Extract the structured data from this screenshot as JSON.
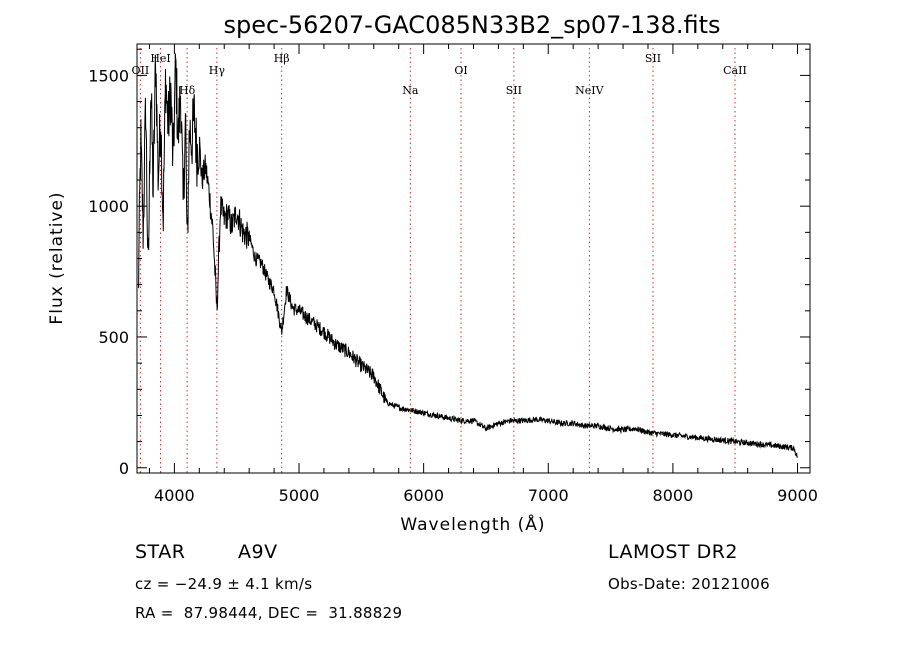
{
  "chart_data": {
    "type": "line",
    "title": "spec-56207-GAC085N33B2_sp07-138.fits",
    "xlabel": "Wavelength (Å)",
    "ylabel": "Flux (relative)",
    "xlim": [
      3700,
      9100
    ],
    "ylim": [
      -20,
      1620
    ],
    "x_ticks": [
      4000,
      5000,
      6000,
      7000,
      8000,
      9000
    ],
    "y_ticks": [
      0,
      500,
      1000,
      1500
    ],
    "grid": false,
    "line_markers": [
      {
        "name": "OII",
        "wavelength": 3727
      },
      {
        "name": "HeI",
        "wavelength": 3889
      },
      {
        "name": "Hδ",
        "wavelength": 4102
      },
      {
        "name": "Hγ",
        "wavelength": 4341
      },
      {
        "name": "Hβ",
        "wavelength": 4861
      },
      {
        "name": "Na",
        "wavelength": 5893
      },
      {
        "name": "OI",
        "wavelength": 6300
      },
      {
        "name": "SII",
        "wavelength": 6724
      },
      {
        "name": "NeIV",
        "wavelength": 7330
      },
      {
        "name": "SII",
        "wavelength": 7840
      },
      {
        "name": "CaII",
        "wavelength": 8498
      }
    ],
    "series": [
      {
        "x": [
          3710,
          3730,
          3750,
          3770,
          3790,
          3810,
          3830,
          3850,
          3870,
          3890,
          3910,
          3930,
          3950,
          3970,
          3990,
          4010,
          4030,
          4050,
          4070,
          4090,
          4102,
          4120,
          4140,
          4160,
          4180,
          4200,
          4220,
          4250,
          4280,
          4310,
          4341,
          4370,
          4400,
          4430,
          4460,
          4500,
          4550,
          4600,
          4650,
          4700,
          4750,
          4800,
          4861,
          4900,
          4950,
          5000,
          5100,
          5200,
          5300,
          5400,
          5500,
          5600,
          5650,
          5700,
          5750,
          5800,
          5900,
          6000,
          6100,
          6200,
          6300,
          6400,
          6500,
          6600,
          6700,
          6800,
          6900,
          7000,
          7100,
          7200,
          7300,
          7400,
          7500,
          7600,
          7700,
          7800,
          7900,
          8000,
          8100,
          8200,
          8300,
          8400,
          8500,
          8600,
          8700,
          8800,
          8900,
          8970,
          9000
        ],
        "values": [
          650,
          1250,
          900,
          1400,
          700,
          1480,
          1050,
          1580,
          1100,
          1350,
          950,
          1500,
          1300,
          1450,
          1150,
          1550,
          1250,
          1450,
          1000,
          1350,
          800,
          1300,
          1250,
          1350,
          1200,
          1250,
          1100,
          1150,
          1050,
          900,
          600,
          1000,
          950,
          970,
          920,
          980,
          900,
          880,
          800,
          780,
          720,
          680,
          520,
          680,
          610,
          600,
          560,
          520,
          470,
          440,
          390,
          350,
          300,
          250,
          240,
          230,
          220,
          210,
          200,
          190,
          180,
          180,
          150,
          170,
          180,
          180,
          185,
          180,
          170,
          170,
          160,
          160,
          150,
          145,
          150,
          135,
          130,
          125,
          120,
          115,
          110,
          105,
          100,
          95,
          90,
          85,
          80,
          75,
          40
        ]
      }
    ]
  },
  "info": {
    "object_type": "STAR",
    "spectral_class": "A9V",
    "survey": "LAMOST DR2",
    "redshift": "cz = −24.9 ± 4.1 km/s",
    "obs_date": "Obs-Date: 20121006",
    "coordinates": "RA =  87.98444, DEC =  31.88829"
  }
}
